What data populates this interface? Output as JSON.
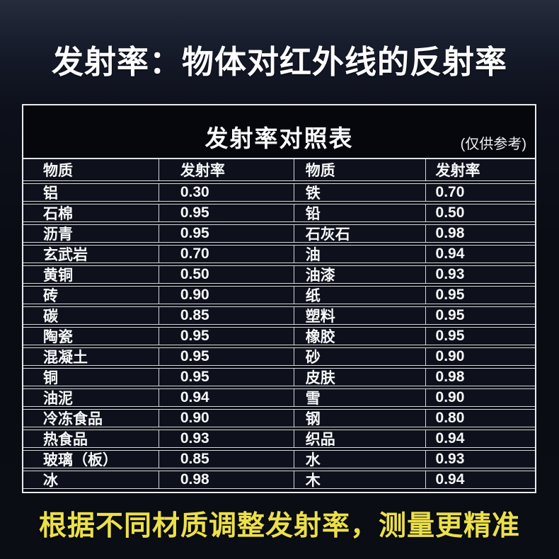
{
  "page": {
    "title": "发射率：物体对红外线的反射率",
    "footer": "根据不同材质调整发射率，测量更精准"
  },
  "colors": {
    "background_top": "#262c3d",
    "background_main": "#0a0c14",
    "table_border": "#e9ebf0",
    "row_background": "#0e111b",
    "text": "#f7f8fa",
    "footer_text": "#ece04a"
  },
  "table": {
    "title": "发射率对照表",
    "note": "(仅供参考)",
    "headers": [
      "物质",
      "发射率",
      "物质",
      "发射率"
    ],
    "rows": [
      [
        "铝",
        "0.30",
        "铁",
        "0.70"
      ],
      [
        "石棉",
        "0.95",
        "铅",
        "0.50"
      ],
      [
        "沥青",
        "0.95",
        "石灰石",
        "0.98"
      ],
      [
        "玄武岩",
        "0.70",
        "油",
        "0.94"
      ],
      [
        "黄铜",
        "0.50",
        "油漆",
        "0.93"
      ],
      [
        "砖",
        "0.90",
        "纸",
        "0.95"
      ],
      [
        "碳",
        "0.85",
        "塑料",
        "0.95"
      ],
      [
        "陶瓷",
        "0.95",
        "橡胶",
        "0.95"
      ],
      [
        "混凝土",
        "0.95",
        "砂",
        "0.90"
      ],
      [
        "铜",
        "0.95",
        "皮肤",
        "0.98"
      ],
      [
        "油泥",
        "0.94",
        "雪",
        "0.90"
      ],
      [
        "冷冻食品",
        "0.90",
        "钢",
        "0.80"
      ],
      [
        "热食品",
        "0.93",
        "织品",
        "0.94"
      ],
      [
        "玻璃（板）",
        "0.85",
        "水",
        "0.93"
      ],
      [
        "冰",
        "0.98",
        "木",
        "0.94"
      ]
    ]
  }
}
